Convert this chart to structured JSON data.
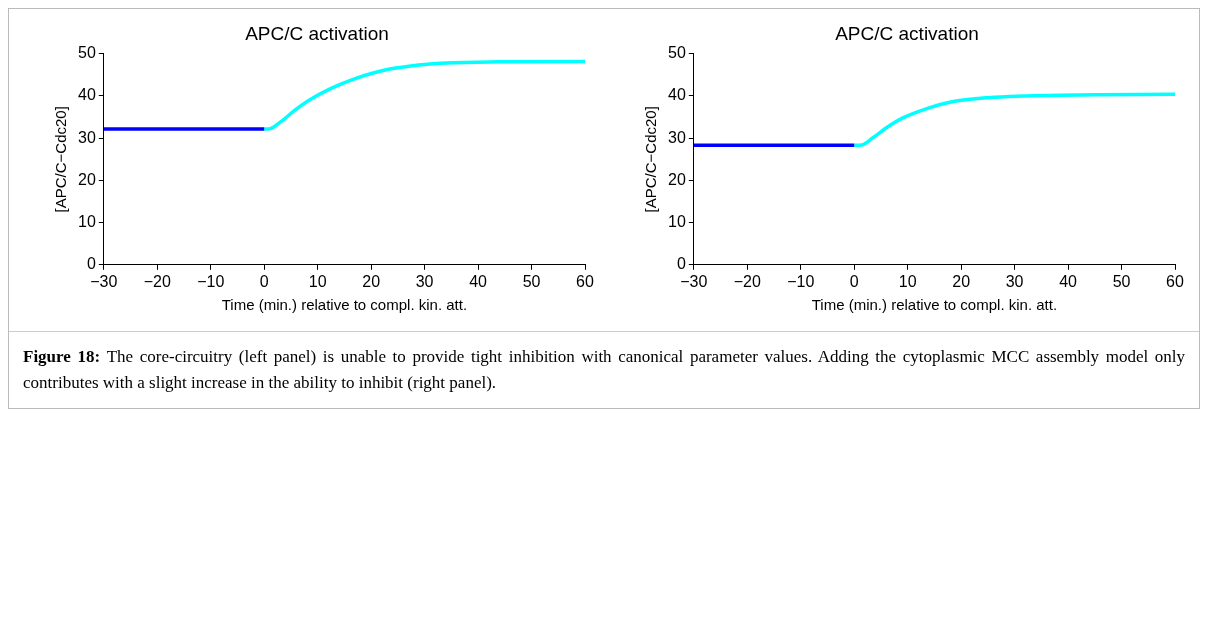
{
  "chart_data": [
    {
      "type": "line",
      "title": "APC/C activation",
      "xlabel": "Time (min.) relative to compl. kin. att.",
      "ylabel": "[APC/C−Cdc20]",
      "xlim": [
        -30,
        60
      ],
      "xticks": [
        {
          "value": -30,
          "label": "−30"
        },
        {
          "value": -20,
          "label": "−20"
        },
        {
          "value": -10,
          "label": "−10"
        },
        0,
        10,
        20,
        30,
        40,
        50,
        60
      ],
      "ylim": [
        0,
        50
      ],
      "yticks": [
        0,
        10,
        20,
        30,
        40,
        50
      ],
      "grid": false,
      "legend": false,
      "marker": "none",
      "series": [
        {
          "color": "#0000ff",
          "x": [
            -30,
            0
          ],
          "values": [
            32.2,
            32.2
          ]
        },
        {
          "color": "#00ffff",
          "x": [
            0,
            0.9,
            3,
            5.7,
            8.4,
            12.5,
            16.5,
            22,
            27.4,
            34,
            43.7,
            60
          ],
          "values": [
            32.2,
            32.2,
            33.8,
            36.6,
            39,
            41.8,
            43.9,
            46,
            47.1,
            47.8,
            48.1,
            48.2
          ]
        }
      ]
    },
    {
      "type": "line",
      "title": "APC/C activation",
      "xlabel": "Time (min.) relative to compl. kin. att.",
      "ylabel": "[APC/C−Cdc20]",
      "xlim": [
        -30,
        60
      ],
      "xticks": [
        {
          "value": -30,
          "label": "−30"
        },
        {
          "value": -20,
          "label": "−20"
        },
        {
          "value": -10,
          "label": "−10"
        },
        0,
        10,
        20,
        30,
        40,
        50,
        60
      ],
      "ylim": [
        0,
        50
      ],
      "yticks": [
        0,
        10,
        20,
        30,
        40,
        50
      ],
      "grid": false,
      "legend": false,
      "marker": "none",
      "series": [
        {
          "color": "#0000ff",
          "x": [
            -30,
            0
          ],
          "values": [
            28.3,
            28.3
          ]
        },
        {
          "color": "#00ffff",
          "x": [
            0,
            1.4,
            3.5,
            6.3,
            9.1,
            13.3,
            18.1,
            25.1,
            35.6,
            46,
            60
          ],
          "values": [
            28.3,
            28.4,
            30.1,
            32.7,
            34.8,
            36.9,
            38.6,
            39.6,
            40.1,
            40.3,
            40.4
          ]
        }
      ]
    },
    {
      "type": "other",
      "annotations": [
        "Figure 18:",
        "The core-circuitry (left panel) is unable to provide tight inhibition with canonical parameter values. Adding the cytoplasmic MCC assembly model only contributes with a slight increase in the ability to inhibit (right panel)."
      ]
    }
  ]
}
